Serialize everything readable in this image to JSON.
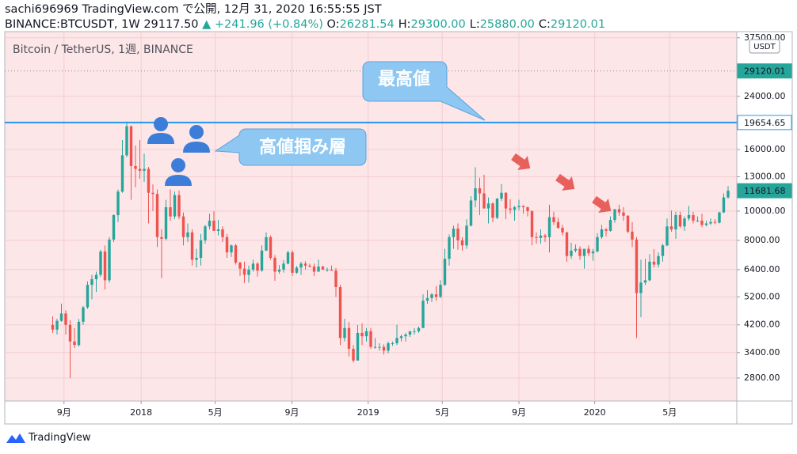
{
  "header": {
    "title": "sachi696969 TradingView.com で公開, 12月 31, 2020 16:55:55 JST",
    "symbol": "BINANCE:BTCUSDT, 1W",
    "last": "29117.50",
    "change": "▲ +241.96 (+0.84%)",
    "ohlc": [
      {
        "key": "O:",
        "value": "26281.54"
      },
      {
        "key": "H:",
        "value": "29300.00"
      },
      {
        "key": "L:",
        "value": "25880.00"
      },
      {
        "key": "C:",
        "value": "29120.01"
      }
    ]
  },
  "footer": {
    "brand": "TradingView"
  },
  "chart_data": {
    "type": "candlestick",
    "legend": "Bitcoin / TetherUS, 1週, BINANCE",
    "currency": "USDT",
    "up_color": "#26a69a",
    "down_color": "#ef5350",
    "log_scale": true,
    "grid": true,
    "annotations": [
      "最高値",
      "高値掴み層"
    ],
    "price_lines": [
      {
        "value": 29120.01,
        "color": "#26a69a",
        "style": "dotted"
      },
      {
        "value": 19654.65,
        "color": "#2196f3",
        "style": "solid"
      },
      {
        "value": 11681.68,
        "color": "#26a69a",
        "style": "tag"
      }
    ],
    "xlim": [
      -11,
      157
    ],
    "xticks": [
      {
        "value": 2.6,
        "label": "9月"
      },
      {
        "value": 20.3,
        "label": "2018"
      },
      {
        "value": 37.3,
        "label": "5月"
      },
      {
        "value": 54.9,
        "label": "9月"
      },
      {
        "value": 72.4,
        "label": "2019"
      },
      {
        "value": 89.4,
        "label": "5月"
      },
      {
        "value": 107,
        "label": "9月"
      },
      {
        "value": 124.4,
        "label": "2020"
      },
      {
        "value": 141.6,
        "label": "5月"
      }
    ],
    "ylim": [
      2350,
      39300
    ],
    "yticks": [
      {
        "value": 2800,
        "label": "2800.00"
      },
      {
        "value": 3400,
        "label": "3400.00"
      },
      {
        "value": 4200,
        "label": "4200.00"
      },
      {
        "value": 5200,
        "label": "5200.00"
      },
      {
        "value": 6400,
        "label": "6400.00"
      },
      {
        "value": 8000,
        "label": "8000.00"
      },
      {
        "value": 10000,
        "label": "10000.00"
      },
      {
        "value": 13000,
        "label": "13000.00"
      },
      {
        "value": 16000,
        "label": "16000.00"
      },
      {
        "value": 24000,
        "label": "24000.00"
      },
      {
        "value": 37500,
        "label": "37500.00"
      }
    ],
    "candles": [
      [
        4200,
        4480,
        3950,
        4050
      ],
      [
        4050,
        4400,
        3900,
        4330
      ],
      [
        4330,
        4940,
        4300,
        4580
      ],
      [
        4580,
        4690,
        3900,
        4200
      ],
      [
        4200,
        4350,
        2800,
        3700
      ],
      [
        3700,
        4100,
        3520,
        3600
      ],
      [
        3600,
        4390,
        3560,
        4300
      ],
      [
        4300,
        4850,
        4200,
        4800
      ],
      [
        4800,
        5850,
        4750,
        5700
      ],
      [
        5700,
        6150,
        5100,
        5950
      ],
      [
        5950,
        6300,
        5400,
        6150
      ],
      [
        6150,
        7450,
        6050,
        7350
      ],
      [
        7350,
        7700,
        5500,
        5900
      ],
      [
        5900,
        8200,
        5800,
        8050
      ],
      [
        8050,
        9750,
        7900,
        9700
      ],
      [
        9700,
        11800,
        9200,
        11600
      ],
      [
        11600,
        17200,
        11500,
        15300
      ],
      [
        15300,
        19798,
        15100,
        19100
      ],
      [
        19100,
        19200,
        10900,
        14100
      ],
      [
        14100,
        16500,
        12000,
        13800
      ],
      [
        13800,
        17200,
        12800,
        13600
      ],
      [
        13600,
        15500,
        12500,
        13800
      ],
      [
        13800,
        14000,
        9100,
        11500
      ],
      [
        11500,
        12250,
        10000,
        11400
      ],
      [
        11400,
        11800,
        7600,
        8200
      ],
      [
        8200,
        8700,
        6000,
        8100
      ],
      [
        8100,
        10900,
        8000,
        10300
      ],
      [
        10300,
        11800,
        9300,
        9600
      ],
      [
        9600,
        11600,
        9400,
        11300
      ],
      [
        11300,
        11700,
        9400,
        9600
      ],
      [
        9600,
        9900,
        7700,
        8200
      ],
      [
        8200,
        9100,
        7900,
        8500
      ],
      [
        8500,
        8700,
        6600,
        6900
      ],
      [
        6900,
        7500,
        6500,
        7000
      ],
      [
        7000,
        8400,
        6600,
        8000
      ],
      [
        8000,
        9000,
        7800,
        8900
      ],
      [
        8900,
        9800,
        8700,
        9300
      ],
      [
        9300,
        9990,
        8850,
        8600
      ],
      [
        8600,
        9350,
        8300,
        8700
      ],
      [
        8700,
        8900,
        7900,
        8200
      ],
      [
        8200,
        8400,
        7000,
        7300
      ],
      [
        7300,
        7750,
        7050,
        7700
      ],
      [
        7700,
        7780,
        6650,
        6750
      ],
      [
        6750,
        6800,
        6100,
        6450
      ],
      [
        6450,
        6800,
        5780,
        6150
      ],
      [
        6150,
        6600,
        5800,
        6400
      ],
      [
        6400,
        6900,
        6300,
        6700
      ],
      [
        6700,
        6780,
        6070,
        6350
      ],
      [
        6350,
        7700,
        6300,
        7400
      ],
      [
        7400,
        8500,
        7380,
        8200
      ],
      [
        8200,
        8300,
        6900,
        7000
      ],
      [
        7000,
        7150,
        5880,
        6300
      ],
      [
        6300,
        6620,
        6200,
        6400
      ],
      [
        6400,
        6880,
        6260,
        6700
      ],
      [
        6700,
        7400,
        6660,
        7300
      ],
      [
        7300,
        7410,
        6100,
        6250
      ],
      [
        6250,
        6580,
        6200,
        6500
      ],
      [
        6500,
        6800,
        6150,
        6700
      ],
      [
        6700,
        6820,
        6400,
        6600
      ],
      [
        6600,
        6700,
        6500,
        6550
      ],
      [
        6550,
        6700,
        6100,
        6300
      ],
      [
        6300,
        6900,
        6300,
        6550
      ],
      [
        6550,
        6600,
        6400,
        6400
      ],
      [
        6400,
        6500,
        6300,
        6400
      ],
      [
        6400,
        6600,
        6350,
        6350
      ],
      [
        6350,
        6480,
        5200,
        5600
      ],
      [
        5600,
        5700,
        3600,
        3800
      ],
      [
        3800,
        4400,
        3700,
        4100
      ],
      [
        4100,
        4300,
        3300,
        3500
      ],
      [
        3500,
        3600,
        3150,
        3200
      ],
      [
        3200,
        4200,
        3200,
        3950
      ],
      [
        3950,
        4250,
        3600,
        3850
      ],
      [
        3850,
        4100,
        3700,
        4000
      ],
      [
        4000,
        4100,
        3500,
        3550
      ],
      [
        3550,
        3800,
        3500,
        3550
      ],
      [
        3550,
        3650,
        3450,
        3550
      ],
      [
        3550,
        3620,
        3350,
        3450
      ],
      [
        3450,
        3700,
        3380,
        3650
      ],
      [
        3650,
        3700,
        3580,
        3650
      ],
      [
        3650,
        4200,
        3600,
        3800
      ],
      [
        3800,
        3900,
        3700,
        3850
      ],
      [
        3850,
        3950,
        3700,
        3900
      ],
      [
        3900,
        4000,
        3830,
        4000
      ],
      [
        4000,
        4100,
        3900,
        4000
      ],
      [
        4000,
        4150,
        3950,
        4100
      ],
      [
        4100,
        5300,
        4100,
        5050
      ],
      [
        5050,
        5470,
        4930,
        5150
      ],
      [
        5150,
        5350,
        5000,
        5300
      ],
      [
        5300,
        5650,
        5050,
        5200
      ],
      [
        5200,
        5900,
        5150,
        5700
      ],
      [
        5700,
        7500,
        5650,
        6950
      ],
      [
        6950,
        8370,
        6600,
        8200
      ],
      [
        8200,
        8950,
        7500,
        8750
      ],
      [
        8750,
        9100,
        7450,
        8000
      ],
      [
        8000,
        8200,
        7400,
        7700
      ],
      [
        7700,
        9400,
        7500,
        8950
      ],
      [
        8950,
        11200,
        8900,
        10850
      ],
      [
        10850,
        13970,
        10300,
        11900
      ],
      [
        11900,
        12900,
        9700,
        11450
      ],
      [
        11450,
        13200,
        10350,
        10200
      ],
      [
        10200,
        11100,
        9100,
        10600
      ],
      [
        10600,
        10700,
        9200,
        9500
      ],
      [
        9500,
        11050,
        9400,
        11000
      ],
      [
        11000,
        12300,
        10800,
        11500
      ],
      [
        11500,
        11550,
        9400,
        10200
      ],
      [
        10200,
        10950,
        9800,
        10100
      ],
      [
        10100,
        10400,
        9300,
        10300
      ],
      [
        10300,
        10900,
        10050,
        10400
      ],
      [
        10400,
        10450,
        9800,
        10300
      ],
      [
        10300,
        10350,
        9600,
        10000
      ],
      [
        10000,
        10050,
        7700,
        8200
      ],
      [
        8200,
        8500,
        7800,
        8150
      ],
      [
        8150,
        8700,
        7800,
        8300
      ],
      [
        8300,
        8400,
        7900,
        8200
      ],
      [
        8200,
        10500,
        7300,
        9550
      ],
      [
        9550,
        9950,
        9000,
        9200
      ],
      [
        9200,
        9500,
        8750,
        8800
      ],
      [
        8800,
        9000,
        8300,
        8500
      ],
      [
        8500,
        8550,
        6800,
        7100
      ],
      [
        7100,
        7850,
        6950,
        7400
      ],
      [
        7400,
        7750,
        7300,
        7500
      ],
      [
        7500,
        7650,
        6900,
        7100
      ],
      [
        7100,
        7500,
        6450,
        7500
      ],
      [
        7500,
        7700,
        7100,
        7250
      ],
      [
        7250,
        7500,
        6850,
        7350
      ],
      [
        7350,
        8450,
        7300,
        8200
      ],
      [
        8200,
        9000,
        8100,
        8700
      ],
      [
        8700,
        8800,
        8250,
        8600
      ],
      [
        8600,
        9600,
        8550,
        9350
      ],
      [
        9350,
        10150,
        9150,
        10150
      ],
      [
        10150,
        10500,
        9650,
        9900
      ],
      [
        9900,
        10300,
        9300,
        9650
      ],
      [
        9650,
        9700,
        8450,
        8550
      ],
      [
        8550,
        9200,
        7600,
        8050
      ],
      [
        8050,
        8200,
        3800,
        5350
      ],
      [
        5350,
        6900,
        4450,
        5800
      ],
      [
        5800,
        6950,
        5700,
        5900
      ],
      [
        5900,
        7200,
        5850,
        6800
      ],
      [
        6800,
        7480,
        6500,
        6650
      ],
      [
        6650,
        7300,
        6500,
        7100
      ],
      [
        7100,
        7800,
        6800,
        7700
      ],
      [
        7700,
        9450,
        7650,
        8900
      ],
      [
        8900,
        10050,
        8550,
        8700
      ],
      [
        8700,
        9950,
        8100,
        9700
      ],
      [
        9700,
        9950,
        8800,
        8900
      ],
      [
        8900,
        9600,
        8600,
        9450
      ],
      [
        9450,
        10400,
        9300,
        9700
      ],
      [
        9700,
        9950,
        9100,
        9300
      ],
      [
        9300,
        9600,
        9200,
        9300
      ],
      [
        9300,
        9800,
        8850,
        9000
      ],
      [
        9000,
        9300,
        8900,
        9100
      ],
      [
        9100,
        9450,
        9000,
        9200
      ],
      [
        9200,
        9400,
        9050,
        9150
      ],
      [
        9150,
        9950,
        9100,
        9900
      ],
      [
        9900,
        11450,
        9850,
        11100
      ],
      [
        11100,
        12100,
        11000,
        11681.68
      ]
    ]
  }
}
